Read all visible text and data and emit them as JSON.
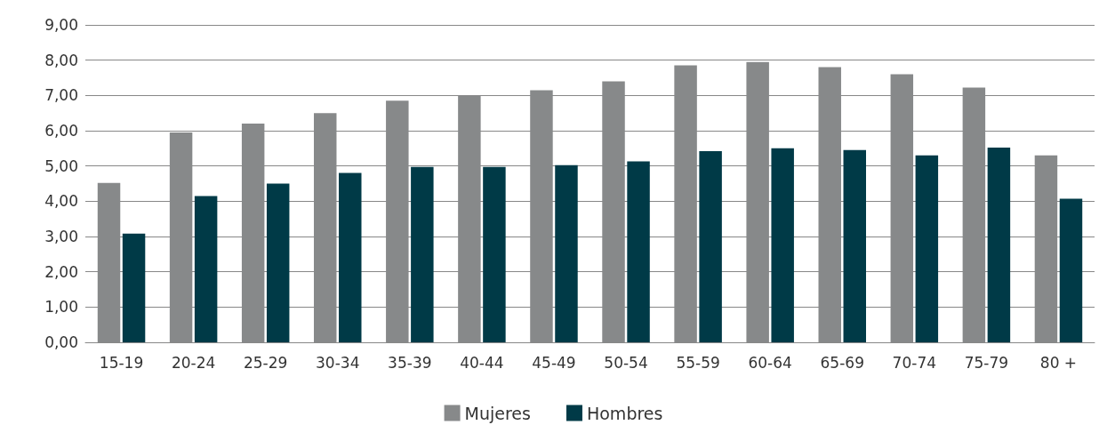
{
  "chart_data": {
    "type": "bar",
    "categories": [
      "15-19",
      "20-24",
      "25-29",
      "30-34",
      "35-39",
      "40-44",
      "45-49",
      "50-54",
      "55-59",
      "60-64",
      "65-69",
      "70-74",
      "75-79",
      "80 +"
    ],
    "series": [
      {
        "name": "Mujeres",
        "color": "#87898a",
        "values": [
          4.52,
          5.95,
          6.2,
          6.5,
          6.85,
          7.0,
          7.15,
          7.4,
          7.85,
          7.95,
          7.8,
          7.6,
          7.22,
          5.3
        ]
      },
      {
        "name": "Hombres",
        "color": "#003a47",
        "values": [
          3.08,
          4.15,
          4.5,
          4.8,
          4.97,
          4.97,
          5.02,
          5.13,
          5.42,
          5.5,
          5.45,
          5.3,
          5.52,
          4.07
        ]
      }
    ],
    "ylim": [
      0,
      9
    ],
    "yticks": [
      {
        "value": 0,
        "label": "0,00"
      },
      {
        "value": 1,
        "label": "1,00"
      },
      {
        "value": 2,
        "label": "2,00"
      },
      {
        "value": 3,
        "label": "3,00"
      },
      {
        "value": 4,
        "label": "4,00"
      },
      {
        "value": 5,
        "label": "5,00"
      },
      {
        "value": 6,
        "label": "6,00"
      },
      {
        "value": 7,
        "label": "7,00"
      },
      {
        "value": 8,
        "label": "8,00"
      },
      {
        "value": 9,
        "label": "9,00"
      }
    ],
    "grid": "y",
    "legend": "bottom"
  }
}
